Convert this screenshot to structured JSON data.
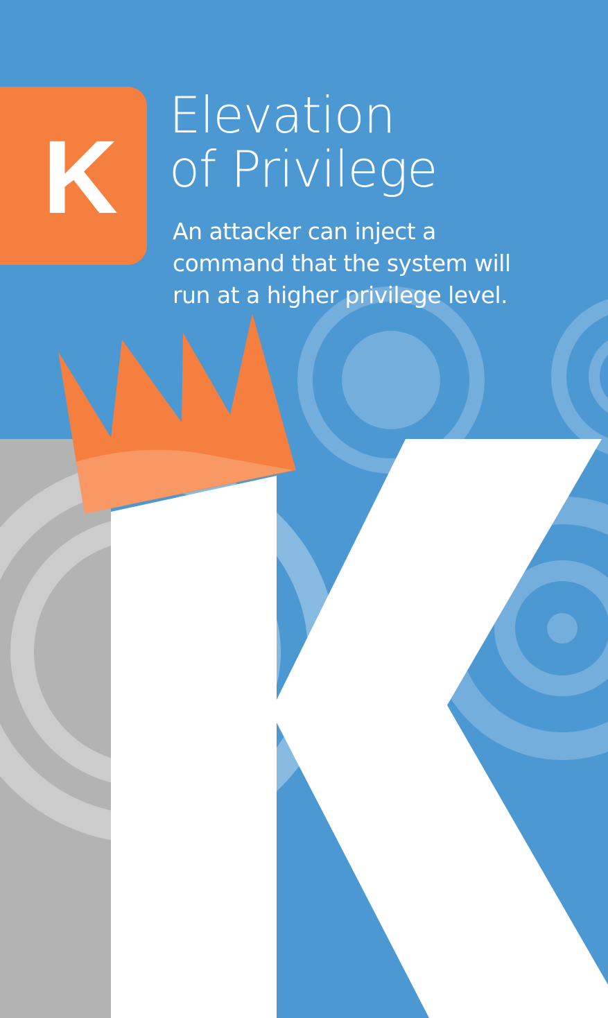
{
  "card": {
    "rank": "K",
    "title_lines": [
      "Elevation",
      "of Privilege"
    ],
    "description_lines": [
      "An attacker can inject a",
      "command that the system will",
      "run at a higher privilege level."
    ]
  },
  "colors": {
    "background_blue": "#4c98d3",
    "accent_orange": "#f57f3f",
    "panel_gray": "#b3b3b3",
    "letter_white": "#ffffff"
  },
  "icons": {
    "illustration": "crowned-letter-k-icon",
    "decoration": "concentric-circles-icon"
  }
}
